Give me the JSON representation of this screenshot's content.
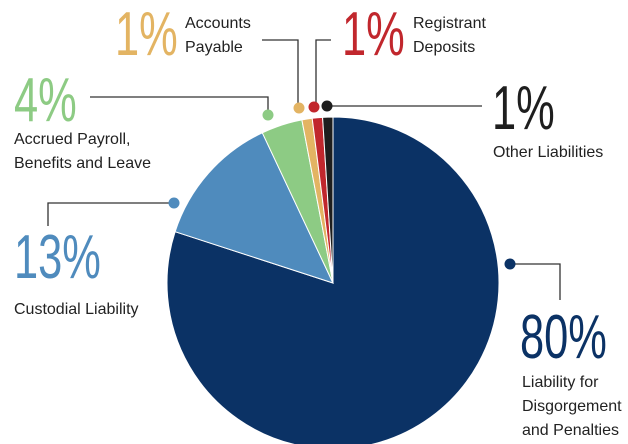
{
  "chart_data": {
    "type": "pie",
    "categories": [
      "Liability for\nDisgorgement\nand Penalties",
      "Custodial Liability",
      "Accrued Payroll,\nBenefits and Leave",
      "Accounts\nPayable",
      "Registrant\nDeposits",
      "Other Liabilities"
    ],
    "values": [
      80,
      13,
      4,
      1,
      1,
      1
    ],
    "value_labels": [
      "80%",
      "13%",
      "4%",
      "1%",
      "1%",
      "1%"
    ],
    "colors": [
      "#0b3265",
      "#4f8bbd",
      "#8dcb84",
      "#e3b463",
      "#c1272d",
      "#1e1e1e"
    ]
  }
}
